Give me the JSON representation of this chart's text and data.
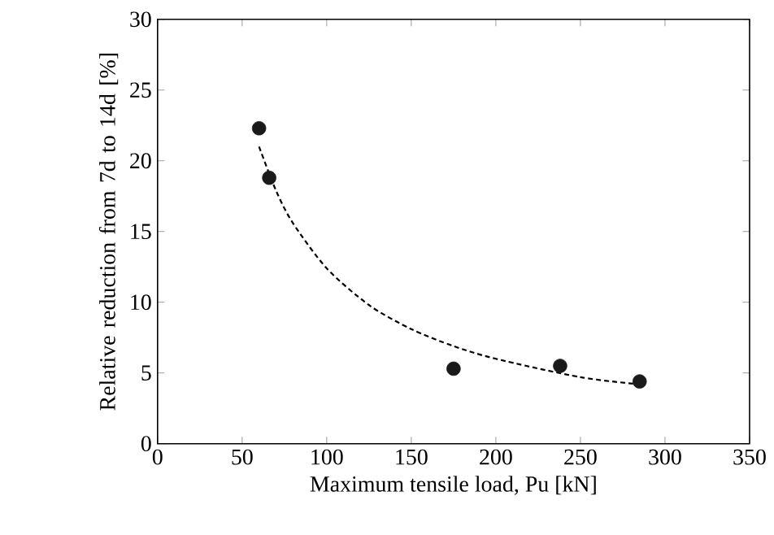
{
  "chart_data": {
    "type": "scatter",
    "xlabel": "Maximum tensile load, Pu [kN]",
    "ylabel": "Relative reduction from 7d to 14d [%]",
    "xlim": [
      0,
      350
    ],
    "xticks": [
      0,
      50,
      100,
      150,
      200,
      250,
      300,
      350
    ],
    "ylim": [
      0,
      30
    ],
    "yticks": [
      0,
      5,
      10,
      15,
      20,
      25,
      30
    ],
    "grid": false,
    "series": [
      {
        "color": "#1a1a1a",
        "marker": "circle",
        "x": [
          60,
          66,
          175,
          238,
          285
        ],
        "values": [
          22.3,
          18.8,
          5.3,
          5.5,
          4.4
        ]
      },
      {
        "type": "line",
        "color": "#000000",
        "line_style": "dashed",
        "marker": "none",
        "x": [
          60,
          70,
          80,
          100,
          125,
          150,
          175,
          200,
          250,
          285
        ],
        "values": [
          21,
          17.9,
          15.6,
          12.4,
          9.8,
          8.1,
          6.9,
          6.0,
          4.7,
          4.2
        ]
      }
    ]
  }
}
